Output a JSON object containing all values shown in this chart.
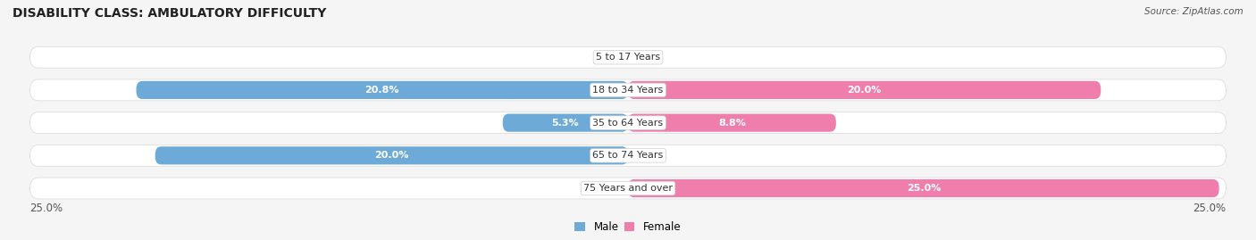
{
  "title": "DISABILITY CLASS: AMBULATORY DIFFICULTY",
  "source": "Source: ZipAtlas.com",
  "categories": [
    "5 to 17 Years",
    "18 to 34 Years",
    "35 to 64 Years",
    "65 to 74 Years",
    "75 Years and over"
  ],
  "male_values": [
    0.0,
    20.8,
    5.3,
    20.0,
    0.0
  ],
  "female_values": [
    0.0,
    20.0,
    8.8,
    0.0,
    25.0
  ],
  "male_color": "#6eaad7",
  "female_color": "#f07ead",
  "male_label": "Male",
  "female_label": "Female",
  "xlim": 25.0,
  "background_color": "#f5f5f5",
  "bar_bg_color": "#ebebeb",
  "row_bg_color": "#f0f0f0",
  "title_fontsize": 10,
  "source_fontsize": 7.5,
  "label_fontsize": 8,
  "category_fontsize": 8,
  "axis_fontsize": 8.5
}
